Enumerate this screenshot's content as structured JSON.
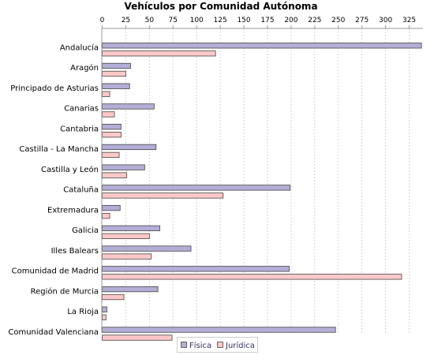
{
  "chart_data": {
    "type": "bar",
    "orientation": "horizontal",
    "title": "Vehículos por Comunidad Autónoma",
    "xlabel": "",
    "ylabel": "",
    "xlim": [
      0,
      340
    ],
    "ticks": [
      0,
      25,
      50,
      75,
      100,
      125,
      150,
      175,
      200,
      225,
      250,
      275,
      300,
      325
    ],
    "grid": true,
    "legend_position": "bottom",
    "categories": [
      "Andalucía",
      "Aragón",
      "Principado de Asturias",
      "Canarias",
      "Cantabria",
      "Castilla - La Mancha",
      "Castilla y León",
      "Cataluña",
      "Extremadura",
      "Galicia",
      "Illes Balears",
      "Comunidad de Madrid",
      "Región de Murcia",
      "La Rioja",
      "Comunidad Valenciana"
    ],
    "series": [
      {
        "name": "Física",
        "color": "#b3aed6",
        "values": [
          338,
          30,
          29,
          55,
          20,
          57,
          45,
          199,
          19,
          61,
          94,
          198,
          59,
          5,
          247
        ]
      },
      {
        "name": "Jurídica",
        "color": "#ffc8c8",
        "values": [
          120,
          25,
          8,
          13,
          20,
          18,
          26,
          128,
          8,
          50,
          52,
          317,
          23,
          4,
          74
        ]
      }
    ]
  }
}
